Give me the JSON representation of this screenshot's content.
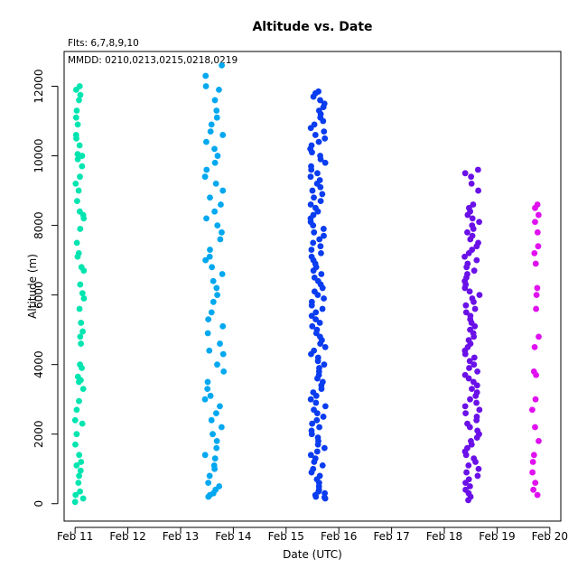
{
  "chart_data": {
    "type": "scatter",
    "title": "Altitude  vs. Date",
    "subtitle_flights": "Flts: 6,7,8,9,10",
    "subtitle_dates": "MMDD: 0210,0213,0215,0218,0219",
    "xlabel": "Date (UTC)",
    "ylabel": "Altitude (m)",
    "xlim": [
      "2011-02-10T19:00",
      "2011-02-20T05:00"
    ],
    "ylim": [
      -500,
      13000
    ],
    "x_ticks": [
      {
        "date": "2011-02-11",
        "label": "Feb 11"
      },
      {
        "date": "2011-02-12",
        "label": "Feb 12"
      },
      {
        "date": "2011-02-13",
        "label": "Feb 13"
      },
      {
        "date": "2011-02-14",
        "label": "Feb 14"
      },
      {
        "date": "2011-02-15",
        "label": "Feb 15"
      },
      {
        "date": "2011-02-16",
        "label": "Feb 16"
      },
      {
        "date": "2011-02-17",
        "label": "Feb 17"
      },
      {
        "date": "2011-02-18",
        "label": "Feb 18"
      },
      {
        "date": "2011-02-19",
        "label": "Feb 19"
      },
      {
        "date": "2011-02-20",
        "label": "Feb 20"
      }
    ],
    "y_ticks": [
      0,
      2000,
      4000,
      6000,
      8000,
      10000,
      12000
    ],
    "grid": false,
    "legend": "none",
    "series": [
      {
        "color": "#00e5b0",
        "x_start": "2011-02-11T00:00",
        "x_end": "2011-02-11T04:00",
        "y": [
          50,
          150,
          250,
          350,
          600,
          800,
          950,
          1100,
          1200,
          1400,
          1700,
          2000,
          2300,
          2400,
          2700,
          2950,
          3300,
          3500,
          3550,
          3650,
          3900,
          4000,
          4600,
          4800,
          4950,
          5200,
          5600,
          5900,
          6050,
          6300,
          6700,
          6800,
          7100,
          7200,
          7500,
          7900,
          8200,
          8300,
          8400,
          8700,
          9000,
          9200,
          9400,
          9700,
          9900,
          10000,
          10050,
          10300,
          10500,
          10600,
          10900,
          11100,
          11300,
          11600,
          11750,
          11900,
          12000
        ]
      },
      {
        "color": "#00a8f0",
        "x_start": "2011-02-13T11:00",
        "x_end": "2011-02-13T20:00",
        "y": [
          200,
          250,
          300,
          400,
          500,
          600,
          800,
          1000,
          1100,
          1300,
          1400,
          1600,
          1800,
          2000,
          2200,
          2400,
          2600,
          2800,
          3000,
          3100,
          3300,
          3500,
          3800,
          4000,
          4300,
          4400,
          4600,
          4900,
          5100,
          5300,
          5500,
          5800,
          6000,
          6200,
          6400,
          6600,
          6800,
          7000,
          7100,
          7300,
          7600,
          7800,
          8000,
          8200,
          8400,
          8600,
          8800,
          9000,
          9200,
          9400,
          9600,
          9800,
          10000,
          10200,
          10400,
          10600,
          10700,
          10900,
          11100,
          11300,
          11600,
          11900,
          12000,
          12300,
          12600
        ]
      },
      {
        "color": "#0a3cf0",
        "x_start": "2011-02-15T11:00",
        "x_end": "2011-02-15T18:00",
        "y": [
          150,
          180,
          200,
          250,
          300,
          350,
          400,
          500,
          600,
          700,
          800,
          900,
          1000,
          1100,
          1200,
          1300,
          1400,
          1500,
          1600,
          1700,
          1800,
          1900,
          2000,
          2100,
          2200,
          2300,
          2400,
          2500,
          2600,
          2700,
          2800,
          2900,
          3000,
          3100,
          3200,
          3300,
          3400,
          3500,
          3600,
          3700,
          3800,
          3900,
          4000,
          4100,
          4200,
          4300,
          4400,
          4500,
          4600,
          4700,
          4800,
          4900,
          5000,
          5100,
          5200,
          5300,
          5400,
          5500,
          5600,
          5700,
          5800,
          5900,
          6000,
          6100,
          6200,
          6300,
          6400,
          6500,
          6600,
          6700,
          6800,
          6900,
          7000,
          7100,
          7200,
          7300,
          7400,
          7500,
          7600,
          7700,
          7800,
          7900,
          8000,
          8100,
          8200,
          8300,
          8400,
          8500,
          8600,
          8700,
          8800,
          8900,
          9000,
          9100,
          9200,
          9300,
          9400,
          9500,
          9600,
          9700,
          9800,
          9900,
          10000,
          10100,
          10200,
          10300,
          10400,
          10500,
          10600,
          10700,
          10800,
          10900,
          11000,
          11100,
          11200,
          11300,
          11400,
          11500,
          11600,
          11700,
          11800,
          11850
        ]
      },
      {
        "color": "#6a10e8",
        "x_start": "2011-02-18T09:00",
        "x_end": "2011-02-18T16:00",
        "y": [
          100,
          200,
          300,
          400,
          500,
          600,
          700,
          800,
          900,
          1000,
          1100,
          1200,
          1300,
          1400,
          1500,
          1600,
          1700,
          1800,
          1900,
          2000,
          2100,
          2200,
          2300,
          2400,
          2500,
          2600,
          2700,
          2800,
          2900,
          3000,
          3100,
          3200,
          3300,
          3400,
          3500,
          3600,
          3700,
          3800,
          3900,
          4000,
          4100,
          4200,
          4300,
          4400,
          4500,
          4600,
          4700,
          4800,
          4900,
          5000,
          5100,
          5200,
          5300,
          5400,
          5500,
          5600,
          5700,
          5800,
          5900,
          6000,
          6100,
          6200,
          6300,
          6400,
          6500,
          6600,
          6700,
          6800,
          6900,
          7000,
          7100,
          7200,
          7300,
          7400,
          7500,
          7600,
          7700,
          7800,
          7900,
          8000,
          8100,
          8200,
          8300,
          8400,
          8500,
          8600,
          9000,
          9200,
          9400,
          9500,
          9600
        ]
      },
      {
        "color": "#e010f0",
        "x_start": "2011-02-19T16:00",
        "x_end": "2011-02-19T19:00",
        "y": [
          250,
          400,
          600,
          900,
          1200,
          1400,
          1800,
          2200,
          2700,
          3000,
          3700,
          3800,
          4500,
          4800,
          5600,
          6000,
          6200,
          6900,
          7200,
          7400,
          7800,
          8100,
          8300,
          8500,
          8600
        ]
      }
    ]
  }
}
